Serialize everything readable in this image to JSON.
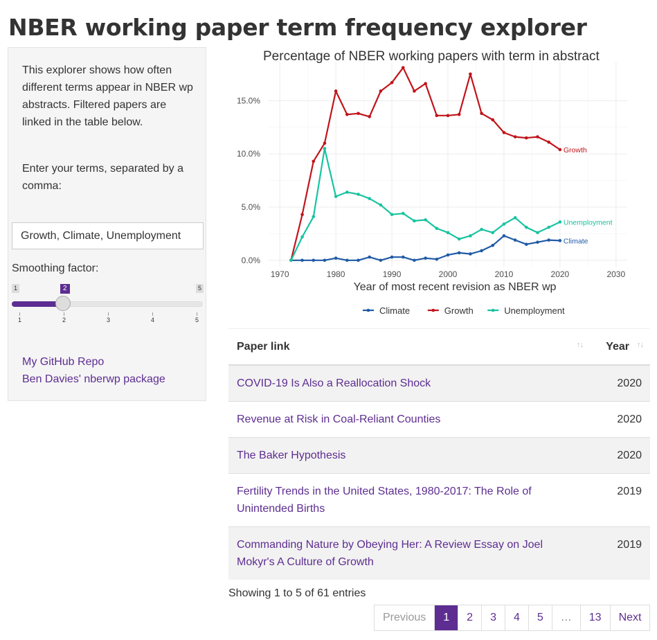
{
  "page": {
    "title": "NBER working paper term frequency explorer"
  },
  "sidebar": {
    "intro": "This explorer shows how often different terms appear in NBER wp abstracts. Filtered papers are linked in the table below.",
    "prompt": "Enter your terms, separated by a comma:",
    "terms_value": "Growth, Climate, Unemployment",
    "smoothing_label": "Smoothing factor:",
    "slider": {
      "min": "1",
      "max": "5",
      "value": "2",
      "ticks": [
        "1",
        "2",
        "3",
        "4",
        "5"
      ],
      "accent": "#5d2d91"
    },
    "links": [
      "My GitHub Repo",
      "Ben Davies' nberwp package"
    ]
  },
  "chart_data": {
    "type": "line",
    "title": "Percentage of NBER working papers with term in abstract",
    "xlabel": "Year of most recent revision as NBER wp",
    "ylabel": "",
    "xlim": [
      1968,
      2032
    ],
    "ylim": [
      -0.6,
      18.6
    ],
    "xticks": [
      1970,
      1980,
      1990,
      2000,
      2010,
      2020,
      2030
    ],
    "yticks": [
      0,
      5,
      10,
      15
    ],
    "ytick_labels": [
      "0.0%",
      "5.0%",
      "10.0%",
      "15.0%"
    ],
    "grid": true,
    "legend_position": "bottom",
    "series": [
      {
        "name": "Climate",
        "color": "#1f5aa6",
        "end_label": "Climate",
        "x": [
          1972,
          1974,
          1976,
          1978,
          1980,
          1982,
          1984,
          1986,
          1988,
          1990,
          1992,
          1994,
          1996,
          1998,
          2000,
          2002,
          2004,
          2006,
          2008,
          2010,
          2012,
          2014,
          2016,
          2018,
          2020
        ],
        "y": [
          0,
          0,
          0,
          0,
          0.2,
          0,
          0,
          0.3,
          0,
          0.3,
          0.3,
          0,
          0.2,
          0.1,
          0.5,
          0.7,
          0.6,
          0.9,
          1.4,
          2.3,
          1.9,
          1.5,
          1.7,
          1.9,
          1.85
        ]
      },
      {
        "name": "Growth",
        "color": "#c0141a",
        "end_label": "Growth",
        "x": [
          1972,
          1974,
          1976,
          1978,
          1980,
          1982,
          1984,
          1986,
          1988,
          1990,
          1992,
          1994,
          1996,
          1998,
          2000,
          2002,
          2004,
          2006,
          2008,
          2010,
          2012,
          2014,
          2016,
          2018,
          2020
        ],
        "y": [
          0,
          4.3,
          9.3,
          11,
          15.9,
          13.7,
          13.8,
          13.5,
          15.9,
          16.7,
          18.1,
          15.9,
          16.6,
          13.6,
          13.6,
          13.7,
          17.5,
          13.8,
          13.2,
          12,
          11.6,
          11.5,
          11.6,
          11.1,
          10.4
        ]
      },
      {
        "name": "Unemployment",
        "color": "#18c3a0",
        "end_label": "Unemployment",
        "x": [
          1972,
          1974,
          1976,
          1978,
          1980,
          1982,
          1984,
          1986,
          1988,
          1990,
          1992,
          1994,
          1996,
          1998,
          2000,
          2002,
          2004,
          2006,
          2008,
          2010,
          2012,
          2014,
          2016,
          2018,
          2020
        ],
        "y": [
          0,
          2.2,
          4.1,
          10.5,
          6,
          6.4,
          6.2,
          5.8,
          5.2,
          4.3,
          4.4,
          3.7,
          3.8,
          3,
          2.6,
          2,
          2.3,
          2.9,
          2.6,
          3.4,
          4,
          3.1,
          2.6,
          3.1,
          3.6
        ]
      }
    ]
  },
  "table": {
    "headers": [
      "Paper link",
      "Year"
    ],
    "rows": [
      {
        "title": "COVID-19 Is Also a Reallocation Shock",
        "year": "2020"
      },
      {
        "title": "Revenue at Risk in Coal-Reliant Counties",
        "year": "2020"
      },
      {
        "title": "The Baker Hypothesis",
        "year": "2020"
      },
      {
        "title": "Fertility Trends in the United States, 1980-2017: The Role of Unintended Births",
        "year": "2019"
      },
      {
        "title": "Commanding Nature by Obeying Her: A Review Essay on Joel Mokyr's A Culture of Growth",
        "year": "2019"
      }
    ],
    "info": "Showing 1 to 5 of 61 entries",
    "pagination": [
      "Previous",
      "1",
      "2",
      "3",
      "4",
      "5",
      "…",
      "13",
      "Next"
    ],
    "active_page": "1"
  },
  "icons": {
    "sort": "sort-arrows-icon"
  }
}
